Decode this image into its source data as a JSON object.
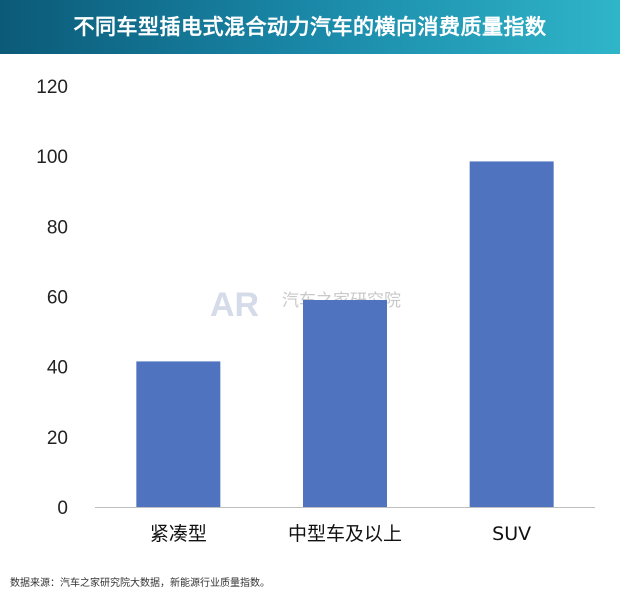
{
  "header": {
    "title": "不同车型插电式混合动力汽车的横向消费质量指数"
  },
  "watermark": {
    "text": "汽车之家研究院",
    "logo_text": "AR"
  },
  "footer": {
    "source": "数据来源：汽车之家研究院大数据，新能源行业质量指数。"
  },
  "chart_data": {
    "type": "bar",
    "categories": [
      "紧凑型",
      "中型车及以上",
      "SUV"
    ],
    "values": [
      41.5,
      59,
      98.5
    ],
    "ylim": [
      0,
      120
    ],
    "yticks": [
      0,
      20,
      40,
      60,
      80,
      100,
      120
    ],
    "bar_color": "#4f73be",
    "grid": false,
    "legend": "none"
  }
}
